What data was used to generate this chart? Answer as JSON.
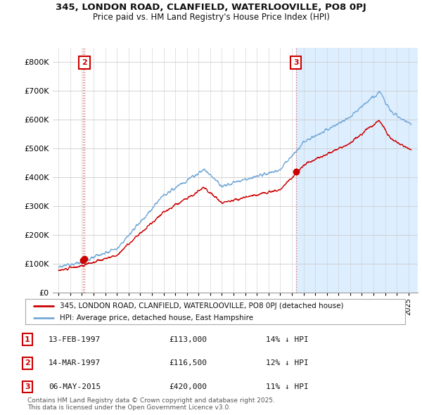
{
  "title": "345, LONDON ROAD, CLANFIELD, WATERLOOVILLE, PO8 0PJ",
  "subtitle": "Price paid vs. HM Land Registry's House Price Index (HPI)",
  "red_label": "345, LONDON ROAD, CLANFIELD, WATERLOOVILLE, PO8 0PJ (detached house)",
  "blue_label": "HPI: Average price, detached house, East Hampshire",
  "sales": [
    {
      "num": 1,
      "date": "13-FEB-1997",
      "price": 113000,
      "pct": "14%",
      "dir": "↓",
      "year": 1997.12
    },
    {
      "num": 2,
      "date": "14-MAR-1997",
      "price": 116500,
      "pct": "12%",
      "dir": "↓",
      "year": 1997.2
    },
    {
      "num": 3,
      "date": "06-MAY-2015",
      "price": 420000,
      "pct": "11%",
      "dir": "↓",
      "year": 2015.35
    }
  ],
  "footer": "Contains HM Land Registry data © Crown copyright and database right 2025.\nThis data is licensed under the Open Government Licence v3.0.",
  "red_color": "#cc0000",
  "blue_color": "#74a9d8",
  "shade_color": "#ddeeff",
  "bg_color": "#ffffff",
  "grid_color": "#cccccc",
  "ylim": [
    0,
    850000
  ],
  "yticks": [
    0,
    100000,
    200000,
    300000,
    400000,
    500000,
    600000,
    700000,
    800000
  ],
  "ytick_labels": [
    "£0",
    "£100K",
    "£200K",
    "£300K",
    "£400K",
    "£500K",
    "£600K",
    "£700K",
    "£800K"
  ],
  "xlim_start": 1994.5,
  "xlim_end": 2025.8
}
